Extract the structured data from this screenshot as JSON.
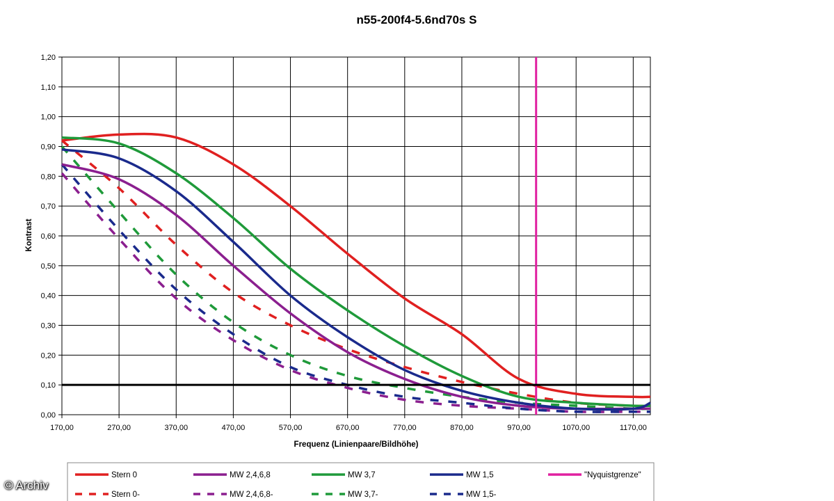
{
  "chart_data": {
    "type": "line",
    "title": "n55-200f4-5.6nd70s S",
    "xlabel": "Frequenz (Linienpaare/Bildhöhe)",
    "ylabel": "Kontrast",
    "xlim": [
      170,
      1200
    ],
    "ylim": [
      0,
      1.2
    ],
    "x_ticks": [
      170,
      270,
      370,
      470,
      570,
      670,
      770,
      870,
      970,
      1070,
      1170
    ],
    "x_tick_labels": [
      "170,00",
      "270,00",
      "370,00",
      "470,00",
      "570,00",
      "670,00",
      "770,00",
      "870,00",
      "970,00",
      "1070,00",
      "1170,00"
    ],
    "y_ticks": [
      0,
      0.1,
      0.2,
      0.3,
      0.4,
      0.5,
      0.6,
      0.7,
      0.8,
      0.9,
      1.0,
      1.1,
      1.2
    ],
    "y_tick_labels": [
      "0,00",
      "0,10",
      "0,20",
      "0,30",
      "0,40",
      "0,50",
      "0,60",
      "0,70",
      "0,80",
      "0,90",
      "1,00",
      "1,10",
      "1,20"
    ],
    "grid": true,
    "legend_position": "bottom",
    "x": [
      170,
      270,
      370,
      470,
      570,
      670,
      770,
      870,
      970,
      1070,
      1170,
      1200
    ],
    "series": [
      {
        "name": "Stern 0",
        "color": "#e02020",
        "dash": false,
        "values": [
          0.92,
          0.94,
          0.93,
          0.84,
          0.7,
          0.54,
          0.39,
          0.27,
          0.12,
          0.07,
          0.06,
          0.06
        ]
      },
      {
        "name": "MW 2,4,6,8",
        "color": "#8b1f8f",
        "dash": false,
        "values": [
          0.84,
          0.79,
          0.67,
          0.5,
          0.34,
          0.21,
          0.12,
          0.06,
          0.03,
          0.02,
          0.02,
          0.02
        ]
      },
      {
        "name": "MW 3,7",
        "color": "#1f9a3a",
        "dash": false,
        "values": [
          0.93,
          0.91,
          0.81,
          0.66,
          0.49,
          0.35,
          0.23,
          0.13,
          0.06,
          0.04,
          0.03,
          0.03
        ]
      },
      {
        "name": "MW 1,5",
        "color": "#1a2a8c",
        "dash": false,
        "values": [
          0.89,
          0.86,
          0.75,
          0.58,
          0.4,
          0.26,
          0.15,
          0.08,
          0.04,
          0.02,
          0.02,
          0.04
        ]
      },
      {
        "name": "Stern 0-",
        "color": "#e02020",
        "dash": true,
        "values": [
          0.92,
          0.76,
          0.57,
          0.41,
          0.3,
          0.22,
          0.16,
          0.11,
          0.07,
          0.04,
          0.03,
          0.03
        ]
      },
      {
        "name": "MW 2,4,6,8-",
        "color": "#8b1f8f",
        "dash": true,
        "values": [
          0.81,
          0.59,
          0.39,
          0.25,
          0.15,
          0.09,
          0.05,
          0.03,
          0.02,
          0.01,
          0.01,
          0.01
        ]
      },
      {
        "name": "MW 3,7-",
        "color": "#1f9a3a",
        "dash": true,
        "values": [
          0.9,
          0.68,
          0.47,
          0.31,
          0.2,
          0.13,
          0.09,
          0.06,
          0.04,
          0.03,
          0.02,
          0.02
        ]
      },
      {
        "name": "MW 1,5-",
        "color": "#1a2a8c",
        "dash": true,
        "values": [
          0.84,
          0.62,
          0.42,
          0.27,
          0.16,
          0.1,
          0.06,
          0.04,
          0.02,
          0.01,
          0.01,
          0.01
        ]
      }
    ],
    "reference_lines": [
      {
        "name": "\"Nyquistgrenze\"",
        "orientation": "vertical",
        "x": 1000,
        "color": "#e020a0"
      },
      {
        "orientation": "horizontal",
        "y": 0.1,
        "color": "#000000"
      }
    ],
    "legend_order": [
      "Stern 0",
      "MW 2,4,6,8",
      "MW 3,7",
      "MW 1,5",
      "\"Nyquistgrenze\"",
      "Stern 0-",
      "MW 2,4,6,8-",
      "MW 3,7-",
      "MW 1,5-"
    ]
  },
  "watermark": "© Archiv"
}
